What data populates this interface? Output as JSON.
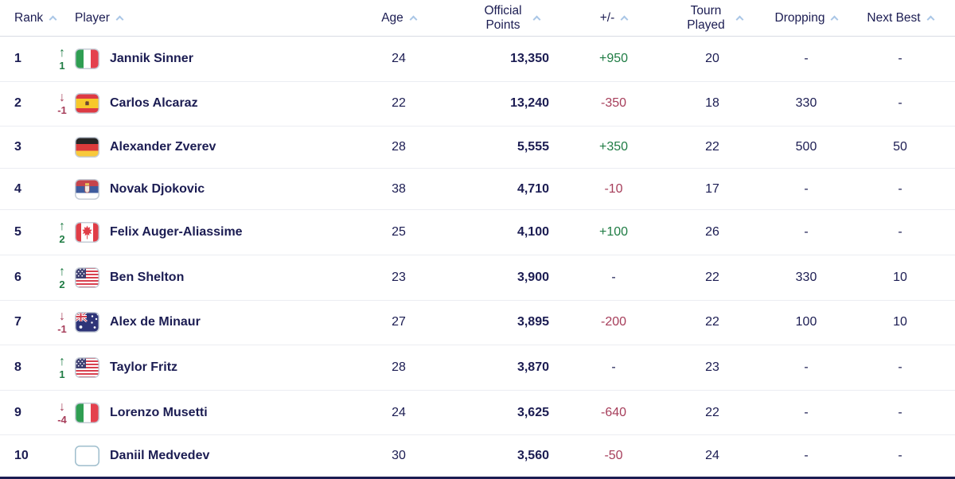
{
  "table": {
    "header": {
      "rank": "Rank",
      "player": "Player",
      "age": "Age",
      "points": "Official Points",
      "plus_minus": "+/-",
      "tourn": "Tourn Played",
      "dropping": "Dropping",
      "next_best": "Next Best"
    },
    "rows": [
      {
        "rank": "1",
        "movement": {
          "direction": "up",
          "value": "1"
        },
        "country": "ITA",
        "player": "Jannik Sinner",
        "age": "24",
        "points": "13,350",
        "plus_minus": "+950",
        "pm_type": "gain",
        "tourn_played": "20",
        "dropping": "-",
        "next_best": "-"
      },
      {
        "rank": "2",
        "movement": {
          "direction": "down",
          "value": "-1"
        },
        "country": "ESP",
        "player": "Carlos Alcaraz",
        "age": "22",
        "points": "13,240",
        "plus_minus": "-350",
        "pm_type": "loss",
        "tourn_played": "18",
        "dropping": "330",
        "next_best": "-"
      },
      {
        "rank": "3",
        "movement": null,
        "country": "GER",
        "player": "Alexander Zverev",
        "age": "28",
        "points": "5,555",
        "plus_minus": "+350",
        "pm_type": "gain",
        "tourn_played": "22",
        "dropping": "500",
        "next_best": "50"
      },
      {
        "rank": "4",
        "movement": null,
        "country": "SRB",
        "player": "Novak Djokovic",
        "age": "38",
        "points": "4,710",
        "plus_minus": "-10",
        "pm_type": "loss",
        "tourn_played": "17",
        "dropping": "-",
        "next_best": "-"
      },
      {
        "rank": "5",
        "movement": {
          "direction": "up",
          "value": "2"
        },
        "country": "CAN",
        "player": "Felix Auger-Aliassime",
        "age": "25",
        "points": "4,100",
        "plus_minus": "+100",
        "pm_type": "gain",
        "tourn_played": "26",
        "dropping": "-",
        "next_best": "-"
      },
      {
        "rank": "6",
        "movement": {
          "direction": "up",
          "value": "2"
        },
        "country": "USA",
        "player": "Ben Shelton",
        "age": "23",
        "points": "3,900",
        "plus_minus": "-",
        "pm_type": "none",
        "tourn_played": "22",
        "dropping": "330",
        "next_best": "10"
      },
      {
        "rank": "7",
        "movement": {
          "direction": "down",
          "value": "-1"
        },
        "country": "AUS",
        "player": "Alex de Minaur",
        "age": "27",
        "points": "3,895",
        "plus_minus": "-200",
        "pm_type": "loss",
        "tourn_played": "22",
        "dropping": "100",
        "next_best": "10"
      },
      {
        "rank": "8",
        "movement": {
          "direction": "up",
          "value": "1"
        },
        "country": "USA",
        "player": "Taylor Fritz",
        "age": "28",
        "points": "3,870",
        "plus_minus": "-",
        "pm_type": "none",
        "tourn_played": "23",
        "dropping": "-",
        "next_best": "-"
      },
      {
        "rank": "9",
        "movement": {
          "direction": "down",
          "value": "-4"
        },
        "country": "ITA",
        "player": "Lorenzo Musetti",
        "age": "24",
        "points": "3,625",
        "plus_minus": "-640",
        "pm_type": "loss",
        "tourn_played": "22",
        "dropping": "-",
        "next_best": "-"
      },
      {
        "rank": "10",
        "movement": null,
        "country": "NONE",
        "player": "Daniil Medvedev",
        "age": "30",
        "points": "3,560",
        "plus_minus": "-50",
        "pm_type": "loss",
        "tourn_played": "24",
        "dropping": "-",
        "next_best": "-"
      }
    ]
  },
  "icons": {
    "sort_caret": "chevron-up",
    "up_arrow": "↑",
    "down_arrow": "↓"
  },
  "colors": {
    "text_navy": "#1b1c52",
    "gain_green": "#1f7c44",
    "loss_red": "#a63d5a",
    "caret_blue": "#a9c6e6",
    "row_divider": "#ebedf2",
    "header_divider": "#d8dbe3",
    "bottom_bar": "#1b1c52"
  }
}
